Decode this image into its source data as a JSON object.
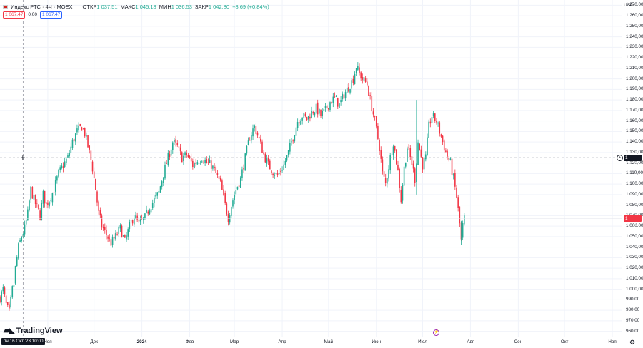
{
  "legend": {
    "title": "Индекс РТС · 4Ч · MOEX",
    "open_label": "ОТКР",
    "open_value": "1 037,51",
    "high_label": "МАКС",
    "high_value": "1 045,18",
    "low_label": "МИН",
    "low_value": "1 036,53",
    "close_label": "ЗАКР",
    "close_value": "1 042,80",
    "change": "+8,69 (+0,84%)"
  },
  "pills": {
    "sell": "1 067,47",
    "spread": "0,00",
    "buy": "1 067,47"
  },
  "currency": "USD",
  "crosshair_price": "1 125,09",
  "last_price": "1 067,47",
  "crosshair_date": "пн 16 Окт '23   10:00",
  "logo_text": "TradingView",
  "colors": {
    "up": "#22ab94",
    "down": "#f23645",
    "grid": "#f0f3fa",
    "crosshair": "#9598a1"
  },
  "icons": [
    "flag-icon",
    "crosshair-icon",
    "cursor-icon",
    "flash-icon",
    "gear-icon"
  ],
  "chart_data": {
    "type": "candlestick",
    "title": "Индекс РТС · 4Ч · MOEX",
    "ylabel": "USD",
    "ylim": [
      955,
      1275
    ],
    "y_ticks": [
      "1 270,00",
      "1 260,00",
      "1 250,00",
      "1 240,00",
      "1 230,00",
      "1 220,00",
      "1 210,00",
      "1 200,00",
      "1 190,00",
      "1 180,00",
      "1 170,00",
      "1 160,00",
      "1 150,00",
      "1 140,00",
      "1 130,00",
      "1 120,00",
      "1 110,00",
      "1 100,00",
      "1 090,00",
      "1 080,00",
      "1 070,00",
      "1 060,00",
      "1 050,00",
      "1 040,00",
      "1 030,00",
      "1 020,00",
      "1 010,00",
      "1 000,00",
      "990,00",
      "980,00",
      "970,00",
      "960,00"
    ],
    "y_tick_values": [
      1270,
      1260,
      1250,
      1240,
      1230,
      1220,
      1210,
      1200,
      1190,
      1180,
      1170,
      1160,
      1150,
      1140,
      1130,
      1120,
      1110,
      1100,
      1090,
      1080,
      1070,
      1060,
      1050,
      1040,
      1030,
      1020,
      1010,
      1000,
      990,
      980,
      970,
      960
    ],
    "x_ticks": [
      {
        "label": "Ноя",
        "month": 1,
        "bold": false
      },
      {
        "label": "Дек",
        "month": 2,
        "bold": false
      },
      {
        "label": "2024",
        "month": 3,
        "bold": true
      },
      {
        "label": "Фев",
        "month": 4,
        "bold": false
      },
      {
        "label": "Мар",
        "month": 5,
        "bold": false
      },
      {
        "label": "Апр",
        "month": 6,
        "bold": false
      },
      {
        "label": "Май",
        "month": 7,
        "bold": false
      },
      {
        "label": "Июн",
        "month": 8,
        "bold": false
      },
      {
        "label": "Июл",
        "month": 9,
        "bold": false
      },
      {
        "label": "Авг",
        "month": 10,
        "bold": false
      },
      {
        "label": "Сен",
        "month": 11,
        "bold": false
      },
      {
        "label": "Окт",
        "month": 12,
        "bold": false
      },
      {
        "label": "Ноя",
        "month": 13,
        "bold": false
      }
    ],
    "x_range": [
      "2023-10-01",
      "2024-11-07"
    ],
    "close_path": [
      [
        "2023-10-01",
        992
      ],
      [
        "2023-10-03",
        1000
      ],
      [
        "2023-10-05",
        985
      ],
      [
        "2023-10-07",
        978
      ],
      [
        "2023-10-09",
        1000
      ],
      [
        "2023-10-10",
        1005
      ],
      [
        "2023-10-11",
        1020
      ],
      [
        "2023-10-13",
        1040
      ],
      [
        "2023-10-15",
        1050
      ],
      [
        "2023-10-17",
        1058
      ],
      [
        "2023-10-19",
        1072
      ],
      [
        "2023-10-21",
        1095
      ],
      [
        "2023-10-23",
        1085
      ],
      [
        "2023-10-25",
        1078
      ],
      [
        "2023-10-27",
        1070
      ],
      [
        "2023-10-29",
        1090
      ],
      [
        "2023-10-31",
        1080
      ],
      [
        "2023-11-02",
        1085
      ],
      [
        "2023-11-05",
        1095
      ],
      [
        "2023-11-08",
        1110
      ],
      [
        "2023-11-11",
        1118
      ],
      [
        "2023-11-14",
        1125
      ],
      [
        "2023-11-17",
        1140
      ],
      [
        "2023-11-20",
        1150
      ],
      [
        "2023-11-23",
        1155
      ],
      [
        "2023-11-25",
        1148
      ],
      [
        "2023-11-28",
        1130
      ],
      [
        "2023-11-30",
        1115
      ],
      [
        "2023-12-02",
        1095
      ],
      [
        "2023-12-04",
        1072
      ],
      [
        "2023-12-06",
        1060
      ],
      [
        "2023-12-09",
        1052
      ],
      [
        "2023-12-12",
        1044
      ],
      [
        "2023-12-15",
        1050
      ],
      [
        "2023-12-18",
        1058
      ],
      [
        "2023-12-21",
        1045
      ],
      [
        "2023-12-24",
        1060
      ],
      [
        "2023-12-27",
        1070
      ],
      [
        "2023-12-30",
        1062
      ],
      [
        "2024-01-03",
        1068
      ],
      [
        "2024-01-06",
        1078
      ],
      [
        "2024-01-09",
        1085
      ],
      [
        "2024-01-12",
        1092
      ],
      [
        "2024-01-15",
        1110
      ],
      [
        "2024-01-18",
        1125
      ],
      [
        "2024-01-21",
        1140
      ],
      [
        "2024-01-24",
        1135
      ],
      [
        "2024-01-27",
        1125
      ],
      [
        "2024-01-30",
        1128
      ],
      [
        "2024-02-03",
        1118
      ],
      [
        "2024-02-06",
        1122
      ],
      [
        "2024-02-09",
        1125
      ],
      [
        "2024-02-12",
        1120
      ],
      [
        "2024-02-15",
        1118
      ],
      [
        "2024-02-18",
        1110
      ],
      [
        "2024-02-21",
        1100
      ],
      [
        "2024-02-24",
        1080
      ],
      [
        "2024-02-26",
        1068
      ],
      [
        "2024-02-28",
        1080
      ],
      [
        "2024-03-02",
        1095
      ],
      [
        "2024-03-05",
        1105
      ],
      [
        "2024-03-08",
        1125
      ],
      [
        "2024-03-11",
        1145
      ],
      [
        "2024-03-14",
        1155
      ],
      [
        "2024-03-17",
        1142
      ],
      [
        "2024-03-20",
        1128
      ],
      [
        "2024-03-23",
        1118
      ],
      [
        "2024-03-26",
        1112
      ],
      [
        "2024-03-29",
        1108
      ],
      [
        "2024-04-02",
        1118
      ],
      [
        "2024-04-05",
        1130
      ],
      [
        "2024-04-08",
        1145
      ],
      [
        "2024-04-11",
        1160
      ],
      [
        "2024-04-14",
        1165
      ],
      [
        "2024-04-17",
        1162
      ],
      [
        "2024-04-20",
        1168
      ],
      [
        "2024-04-23",
        1172
      ],
      [
        "2024-04-26",
        1165
      ],
      [
        "2024-04-29",
        1170
      ],
      [
        "2024-05-02",
        1178
      ],
      [
        "2024-05-05",
        1182
      ],
      [
        "2024-05-08",
        1175
      ],
      [
        "2024-05-11",
        1185
      ],
      [
        "2024-05-14",
        1192
      ],
      [
        "2024-05-17",
        1200
      ],
      [
        "2024-05-19",
        1212
      ],
      [
        "2024-05-21",
        1205
      ],
      [
        "2024-05-23",
        1200
      ],
      [
        "2024-05-26",
        1195
      ],
      [
        "2024-05-28",
        1180
      ],
      [
        "2024-05-31",
        1160
      ],
      [
        "2024-06-03",
        1135
      ],
      [
        "2024-06-05",
        1110
      ],
      [
        "2024-06-07",
        1100
      ],
      [
        "2024-06-10",
        1125
      ],
      [
        "2024-06-12",
        1140
      ],
      [
        "2024-06-15",
        1112
      ],
      [
        "2024-06-17",
        1085
      ],
      [
        "2024-06-19",
        1115
      ],
      [
        "2024-06-21",
        1135
      ],
      [
        "2024-06-24",
        1120
      ],
      [
        "2024-06-26",
        1105
      ],
      [
        "2024-06-28",
        1140
      ],
      [
        "2024-07-01",
        1118
      ],
      [
        "2024-07-03",
        1125
      ],
      [
        "2024-07-05",
        1155
      ],
      [
        "2024-07-07",
        1165
      ],
      [
        "2024-07-10",
        1160
      ],
      [
        "2024-07-13",
        1145
      ],
      [
        "2024-07-16",
        1130
      ],
      [
        "2024-07-19",
        1120
      ],
      [
        "2024-07-21",
        1105
      ],
      [
        "2024-07-23",
        1088
      ],
      [
        "2024-07-25",
        1062
      ],
      [
        "2024-07-26",
        1046
      ],
      [
        "2024-07-27",
        1060
      ],
      [
        "2024-07-28",
        1067.47
      ]
    ],
    "extreme_wicks": [
      [
        "2024-06-19",
        1075,
        1145
      ],
      [
        "2024-06-27",
        1090,
        1180
      ],
      [
        "2024-07-26",
        1042,
        1065
      ]
    ],
    "last_value": 1067.47,
    "crosshair": {
      "date": "2023-10-16",
      "value": 1125.09
    }
  }
}
